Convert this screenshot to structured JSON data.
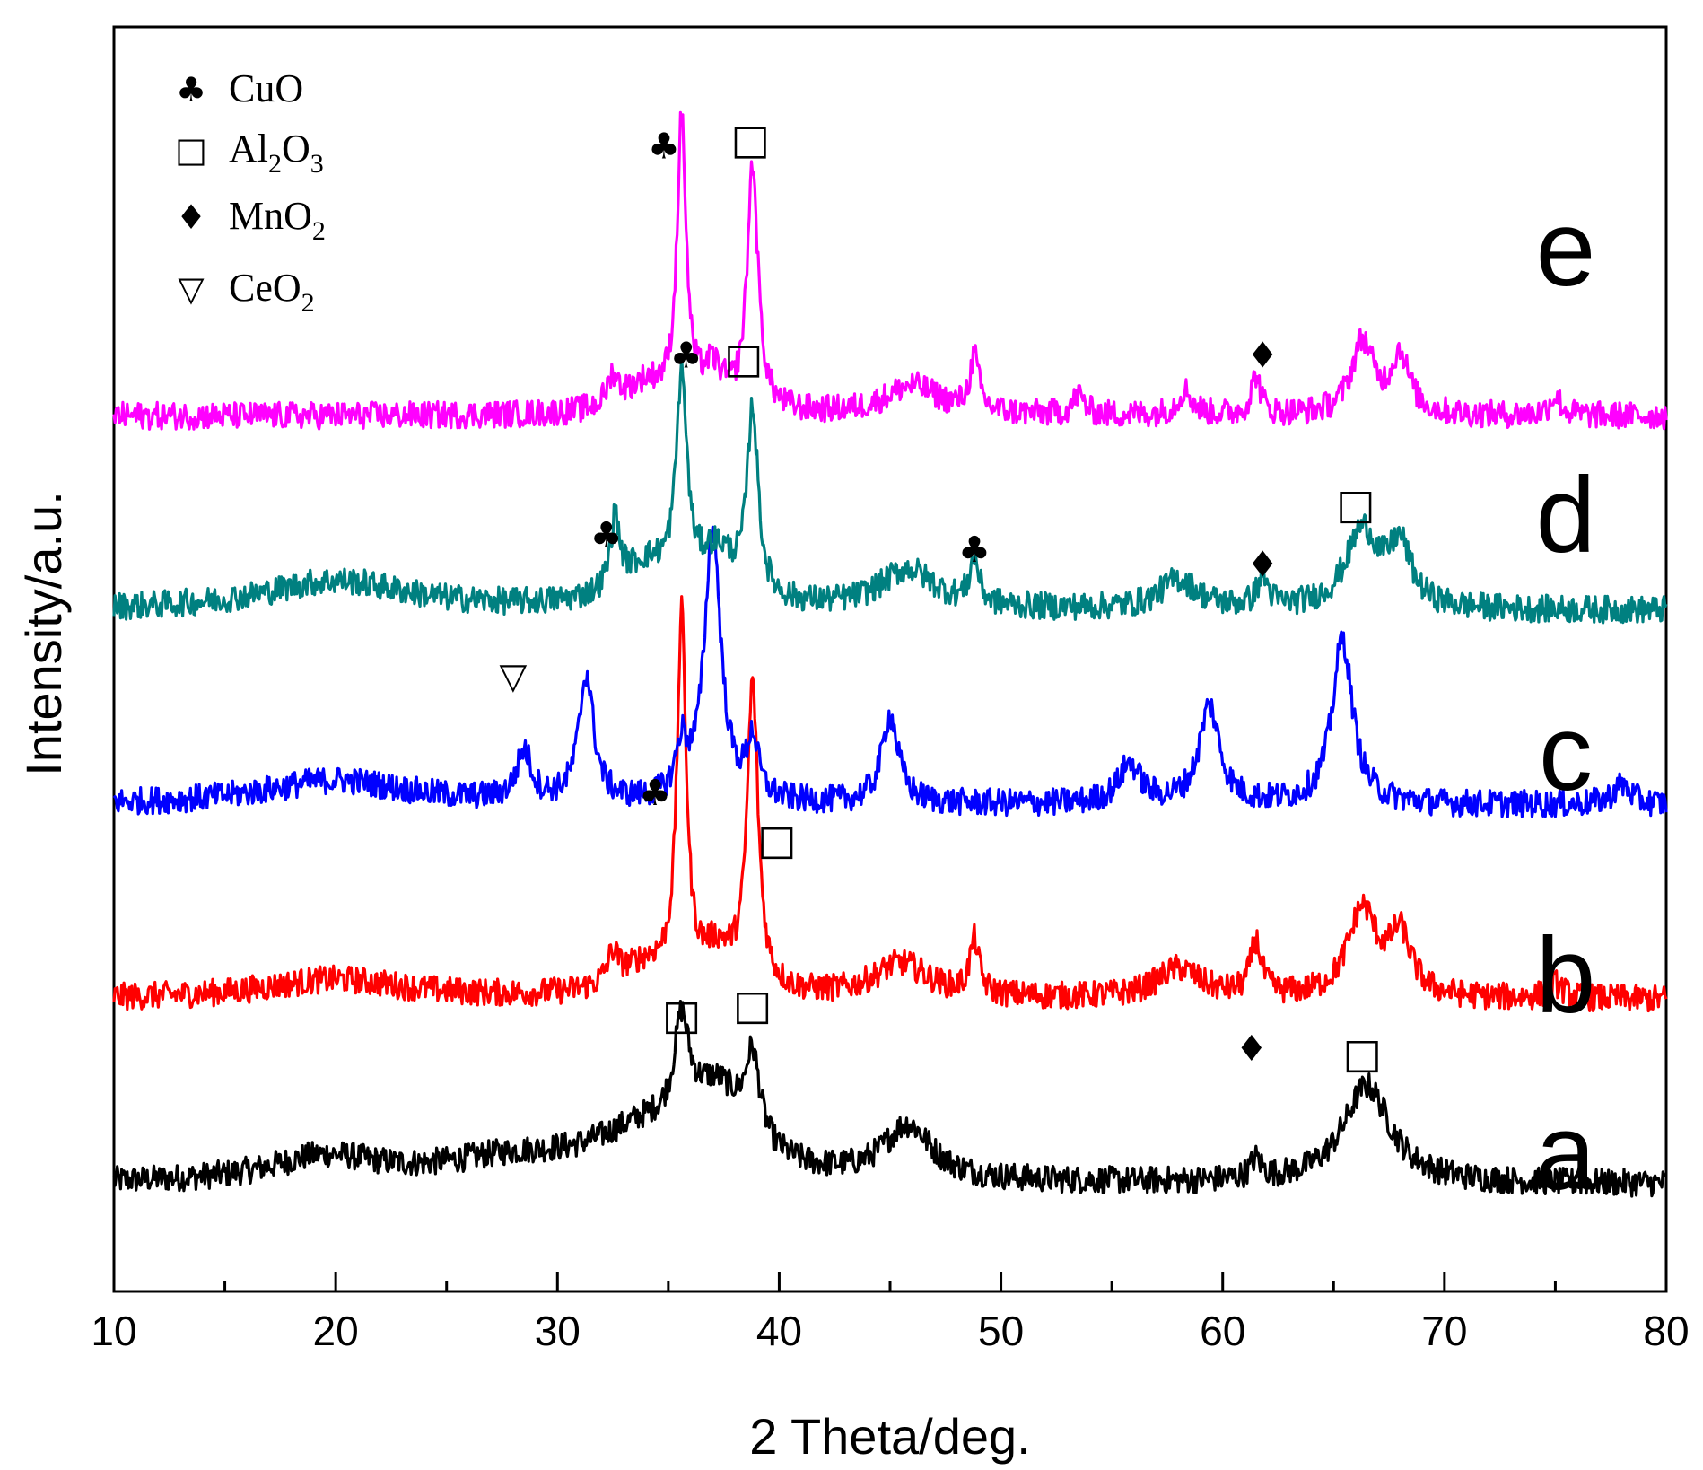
{
  "chart_data": {
    "type": "line",
    "title": "",
    "xlabel": "2 Theta/deg.",
    "ylabel": "Intensity/a.u.",
    "xlim": [
      10,
      80
    ],
    "x_ticks": [
      10,
      20,
      30,
      40,
      50,
      60,
      70,
      80
    ],
    "y_ticks_shown": false,
    "grid": false,
    "legend": {
      "placement": "top-left",
      "entries": [
        {
          "symbol": "♣",
          "label": "CuO",
          "sub": ""
        },
        {
          "symbol": "□",
          "label": "Al",
          "sub": "2",
          "label2": "O",
          "sub2": "3"
        },
        {
          "symbol": "♦",
          "label": "MnO",
          "sub": "2"
        },
        {
          "symbol": "▽",
          "label": "CeO",
          "sub": "2"
        }
      ]
    },
    "series": [
      {
        "name": "a",
        "color": "#000000",
        "offset": 0.0,
        "baseline": 0.03,
        "peaks": [
          [
            19.5,
            0.025,
            3.0
          ],
          [
            28,
            0.02,
            4
          ],
          [
            34,
            0.045,
            3.0
          ],
          [
            35.6,
            0.1,
            0.4
          ],
          [
            37.2,
            0.075,
            1.6
          ],
          [
            38.8,
            0.085,
            0.4
          ],
          [
            45.8,
            0.055,
            1.3
          ],
          [
            61.5,
            0.02,
            0.3
          ],
          [
            66.5,
            0.1,
            1.3
          ]
        ],
        "annotations": [
          {
            "x": 35.6,
            "y": 0.19,
            "symbol": "□"
          },
          {
            "x": 38.8,
            "y": 0.2,
            "symbol": "□"
          },
          {
            "x": 66.3,
            "y": 0.15,
            "symbol": "□"
          }
        ]
      },
      {
        "name": "b",
        "color": "#ff0000",
        "offset": 0.19,
        "baseline": 0.03,
        "peaks": [
          [
            20,
            0.02,
            4
          ],
          [
            32.5,
            0.03,
            0.3
          ],
          [
            34,
            0.03,
            1.5
          ],
          [
            35.6,
            0.37,
            0.25
          ],
          [
            37.2,
            0.04,
            1.0
          ],
          [
            38.8,
            0.31,
            0.3
          ],
          [
            45.5,
            0.035,
            1.5
          ],
          [
            48.8,
            0.055,
            0.25
          ],
          [
            58,
            0.03,
            1.2
          ],
          [
            61.5,
            0.055,
            0.3
          ],
          [
            66.3,
            0.09,
            0.8
          ],
          [
            68,
            0.06,
            0.6
          ],
          [
            75,
            0.015,
            0.4
          ]
        ],
        "annotations": [
          {
            "x": 34.4,
            "y": 0.42,
            "symbol": "♣"
          },
          {
            "x": 39.9,
            "y": 0.37,
            "symbol": "□"
          },
          {
            "x": 61.3,
            "y": 0.157,
            "symbol": "♦"
          }
        ]
      },
      {
        "name": "c",
        "color": "#0000ff",
        "offset": 0.4,
        "baseline": 0.02,
        "peaks": [
          [
            20,
            0.025,
            4
          ],
          [
            28.5,
            0.05,
            0.4
          ],
          [
            31.3,
            0.13,
            0.4
          ],
          [
            35.6,
            0.05,
            0.3
          ],
          [
            37.0,
            0.28,
            0.45
          ],
          [
            38.8,
            0.06,
            0.3
          ],
          [
            45.0,
            0.09,
            0.45
          ],
          [
            55.8,
            0.04,
            0.6
          ],
          [
            59.4,
            0.1,
            0.55
          ],
          [
            65.4,
            0.17,
            0.55
          ],
          [
            78,
            0.02,
            0.5
          ]
        ],
        "annotations": [
          {
            "x": 28.0,
            "y": 0.54,
            "symbol": "▽"
          }
        ]
      },
      {
        "name": "d",
        "color": "#008080",
        "offset": 0.6,
        "baseline": 0.02,
        "peaks": [
          [
            20,
            0.03,
            4
          ],
          [
            32.6,
            0.07,
            0.25
          ],
          [
            34,
            0.04,
            1.5
          ],
          [
            35.6,
            0.21,
            0.3
          ],
          [
            37.2,
            0.05,
            1.0
          ],
          [
            38.8,
            0.19,
            0.3
          ],
          [
            45.8,
            0.04,
            1.5
          ],
          [
            48.8,
            0.045,
            0.25
          ],
          [
            58,
            0.03,
            1.0
          ],
          [
            61.8,
            0.03,
            0.3
          ],
          [
            66.3,
            0.08,
            0.9
          ],
          [
            68,
            0.06,
            0.6
          ]
        ],
        "annotations": [
          {
            "x": 32.2,
            "y": 0.685,
            "symbol": "♣"
          },
          {
            "x": 35.8,
            "y": 0.87,
            "symbol": "♣"
          },
          {
            "x": 38.4,
            "y": 0.865,
            "symbol": "□"
          },
          {
            "x": 48.8,
            "y": 0.67,
            "symbol": "♣"
          },
          {
            "x": 61.8,
            "y": 0.655,
            "symbol": "♦"
          },
          {
            "x": 66.0,
            "y": 0.715,
            "symbol": "□"
          }
        ]
      },
      {
        "name": "e",
        "color": "#ff00ff",
        "offset": 0.8,
        "baseline": 0.02,
        "peaks": [
          [
            32.5,
            0.03,
            0.3
          ],
          [
            34,
            0.03,
            1.2
          ],
          [
            35.6,
            0.29,
            0.25
          ],
          [
            37.0,
            0.04,
            0.6
          ],
          [
            38.8,
            0.25,
            0.3
          ],
          [
            46,
            0.03,
            1.5
          ],
          [
            48.8,
            0.055,
            0.25
          ],
          [
            53.5,
            0.02,
            0.3
          ],
          [
            58.3,
            0.025,
            0.4
          ],
          [
            61.5,
            0.04,
            0.25
          ],
          [
            66.3,
            0.075,
            0.6
          ],
          [
            68,
            0.06,
            0.5
          ],
          [
            75,
            0.02,
            0.3
          ]
        ],
        "annotations": [
          {
            "x": 34.8,
            "y": 1.085,
            "symbol": "♣"
          },
          {
            "x": 38.7,
            "y": 1.09,
            "symbol": "□"
          },
          {
            "x": 61.8,
            "y": 0.87,
            "symbol": "♦"
          }
        ]
      }
    ]
  }
}
